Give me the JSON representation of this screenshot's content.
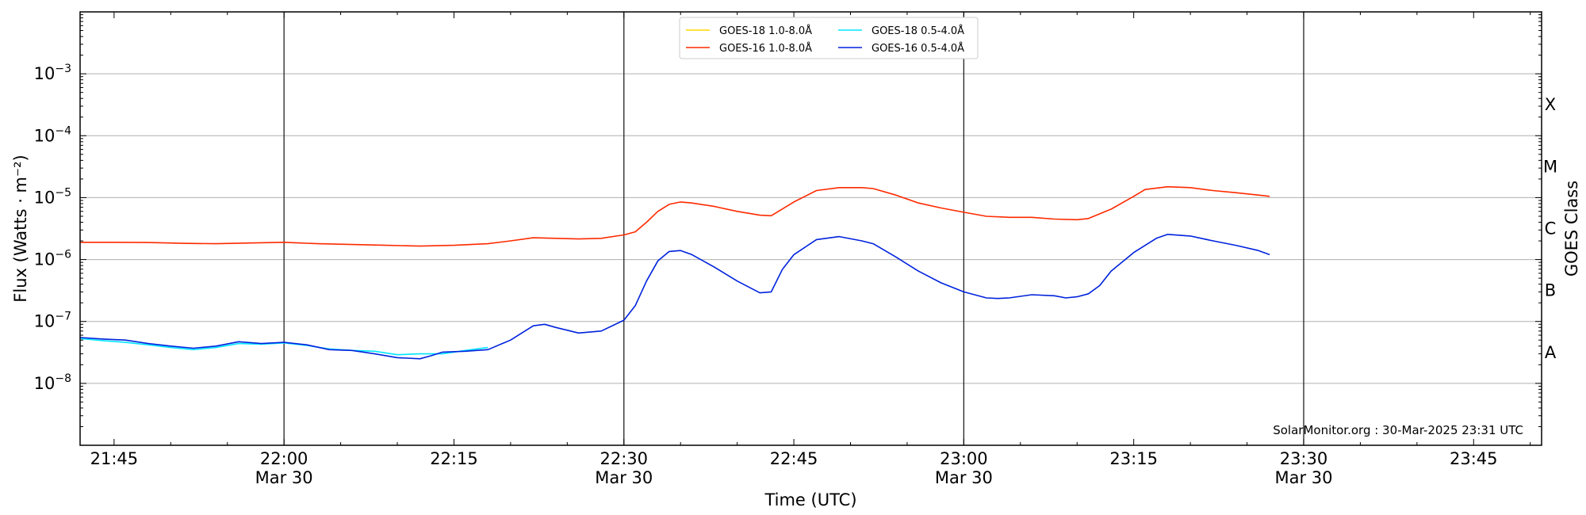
{
  "chart_data": {
    "type": "line",
    "title": "",
    "xlabel": "Time (UTC)",
    "ylabel": "Flux (Watts · m⁻²)",
    "ylabel_right": "GOES Class",
    "y_scale": "log",
    "ylim": [
      1e-09,
      0.01
    ],
    "xlim": [
      "21:42",
      "23:51"
    ],
    "grid": "horizontal",
    "legend_position": "top-center",
    "credit": "SolarMonitor.org : 30-Mar-2025 23:31 UTC",
    "x_ticks": [
      {
        "time": "21:45",
        "label": "21:45",
        "date": ""
      },
      {
        "time": "22:00",
        "label": "22:00",
        "date": "Mar 30"
      },
      {
        "time": "22:15",
        "label": "22:15",
        "date": ""
      },
      {
        "time": "22:30",
        "label": "22:30",
        "date": "Mar 30"
      },
      {
        "time": "22:45",
        "label": "22:45",
        "date": ""
      },
      {
        "time": "23:00",
        "label": "23:00",
        "date": "Mar 30"
      },
      {
        "time": "23:15",
        "label": "23:15",
        "date": ""
      },
      {
        "time": "23:30",
        "label": "23:30",
        "date": "Mar 30"
      },
      {
        "time": "23:45",
        "label": "23:45",
        "date": ""
      }
    ],
    "day_lines": [
      "22:00",
      "22:30",
      "23:00",
      "23:30"
    ],
    "y_ticks": [
      {
        "exp": -3,
        "base": "10",
        "label": "−3"
      },
      {
        "exp": -4,
        "base": "10",
        "label": "−4"
      },
      {
        "exp": -5,
        "base": "10",
        "label": "−5"
      },
      {
        "exp": -6,
        "base": "10",
        "label": "−6"
      },
      {
        "exp": -7,
        "base": "10",
        "label": "−7"
      },
      {
        "exp": -8,
        "base": "10",
        "label": "−8"
      }
    ],
    "goes_classes": [
      {
        "label": "X",
        "exp": -3.5
      },
      {
        "label": "M",
        "exp": -4.5
      },
      {
        "label": "C",
        "exp": -5.5
      },
      {
        "label": "B",
        "exp": -6.5
      },
      {
        "label": "A",
        "exp": -7.5
      }
    ],
    "series": [
      {
        "name": "GOES-18 1.0-8.0Å",
        "color": "#ffd700",
        "x": [],
        "y": []
      },
      {
        "name": "GOES-18 0.5-4.0Å",
        "color": "#00e5ff",
        "x": [
          "21:42",
          "21:44",
          "21:46",
          "21:48",
          "21:50",
          "21:52",
          "21:54",
          "21:56",
          "21:58",
          "22:00",
          "22:02",
          "22:04",
          "22:06",
          "22:08",
          "22:10",
          "22:12",
          "22:14",
          "22:16",
          "22:18"
        ],
        "y": [
          5.3e-08,
          4.9e-08,
          4.6e-08,
          4.2e-08,
          3.8e-08,
          3.5e-08,
          3.8e-08,
          4.4e-08,
          4.3e-08,
          4.5e-08,
          4.1e-08,
          3.6e-08,
          3.4e-08,
          3.3e-08,
          2.9e-08,
          3e-08,
          3e-08,
          3.4e-08,
          3.8e-08
        ]
      },
      {
        "name": "GOES-16 1.0-8.0Å",
        "color": "#ff2a00",
        "x": [
          "21:42",
          "21:45",
          "21:48",
          "21:51",
          "21:54",
          "21:57",
          "22:00",
          "22:03",
          "22:06",
          "22:09",
          "22:12",
          "22:15",
          "22:18",
          "22:20",
          "22:22",
          "22:24",
          "22:26",
          "22:28",
          "22:30",
          "22:31",
          "22:32",
          "22:33",
          "22:34",
          "22:35",
          "22:36",
          "22:38",
          "22:40",
          "22:42",
          "22:43",
          "22:45",
          "22:47",
          "22:49",
          "22:51",
          "22:52",
          "22:54",
          "22:56",
          "22:58",
          "23:00",
          "23:02",
          "23:04",
          "23:06",
          "23:08",
          "23:10",
          "23:11",
          "23:13",
          "23:15",
          "23:16",
          "23:18",
          "23:20",
          "23:22",
          "23:24",
          "23:26",
          "23:27"
        ],
        "y": [
          1.9e-06,
          1.9e-06,
          1.88e-06,
          1.83e-06,
          1.8e-06,
          1.85e-06,
          1.9e-06,
          1.8e-06,
          1.75e-06,
          1.7e-06,
          1.65e-06,
          1.7e-06,
          1.8e-06,
          2e-06,
          2.25e-06,
          2.2e-06,
          2.15e-06,
          2.2e-06,
          2.5e-06,
          2.8e-06,
          4e-06,
          6e-06,
          7.8e-06,
          8.5e-06,
          8.2e-06,
          7.2e-06,
          6e-06,
          5.2e-06,
          5.1e-06,
          8.5e-06,
          1.3e-05,
          1.45e-05,
          1.45e-05,
          1.4e-05,
          1.1e-05,
          8.2e-06,
          6.8e-06,
          5.8e-06,
          5e-06,
          4.8e-06,
          4.8e-06,
          4.5e-06,
          4.4e-06,
          4.6e-06,
          6.5e-06,
          1.05e-05,
          1.35e-05,
          1.5e-05,
          1.45e-05,
          1.3e-05,
          1.2e-05,
          1.1e-05,
          1.05e-05
        ]
      },
      {
        "name": "GOES-16 0.5-4.0Å",
        "color": "#0022dd",
        "x": [
          "21:42",
          "21:44",
          "21:46",
          "21:48",
          "21:50",
          "21:52",
          "21:54",
          "21:56",
          "21:58",
          "22:00",
          "22:02",
          "22:04",
          "22:06",
          "22:08",
          "22:10",
          "22:12",
          "22:13",
          "22:14",
          "22:16",
          "22:18",
          "22:20",
          "22:22",
          "22:23",
          "22:24",
          "22:26",
          "22:28",
          "22:30",
          "22:31",
          "22:32",
          "22:33",
          "22:34",
          "22:35",
          "22:36",
          "22:38",
          "22:40",
          "22:42",
          "22:43",
          "22:44",
          "22:45",
          "22:47",
          "22:49",
          "22:51",
          "22:52",
          "22:54",
          "22:56",
          "22:58",
          "23:00",
          "23:02",
          "23:03",
          "23:04",
          "23:06",
          "23:08",
          "23:09",
          "23:10",
          "23:11",
          "23:12",
          "23:13",
          "23:15",
          "23:17",
          "23:18",
          "23:20",
          "23:22",
          "23:24",
          "23:26",
          "23:27"
        ],
        "y": [
          5.5e-08,
          5.2e-08,
          5e-08,
          4.4e-08,
          4e-08,
          3.7e-08,
          4e-08,
          4.7e-08,
          4.4e-08,
          4.6e-08,
          4.2e-08,
          3.5e-08,
          3.4e-08,
          3e-08,
          2.6e-08,
          2.5e-08,
          2.8e-08,
          3.2e-08,
          3.3e-08,
          3.5e-08,
          5e-08,
          8.5e-08,
          9e-08,
          8e-08,
          6.5e-08,
          7e-08,
          1.05e-07,
          1.8e-07,
          4.5e-07,
          9.5e-07,
          1.35e-06,
          1.4e-06,
          1.2e-06,
          7.5e-07,
          4.5e-07,
          2.9e-07,
          3e-07,
          7e-07,
          1.2e-06,
          2.1e-06,
          2.35e-06,
          2e-06,
          1.8e-06,
          1.1e-06,
          6.5e-07,
          4.2e-07,
          3e-07,
          2.4e-07,
          2.35e-07,
          2.4e-07,
          2.7e-07,
          2.6e-07,
          2.4e-07,
          2.5e-07,
          2.8e-07,
          3.8e-07,
          6.5e-07,
          1.3e-06,
          2.2e-06,
          2.55e-06,
          2.4e-06,
          2e-06,
          1.7e-06,
          1.4e-06,
          1.2e-06
        ]
      }
    ]
  }
}
